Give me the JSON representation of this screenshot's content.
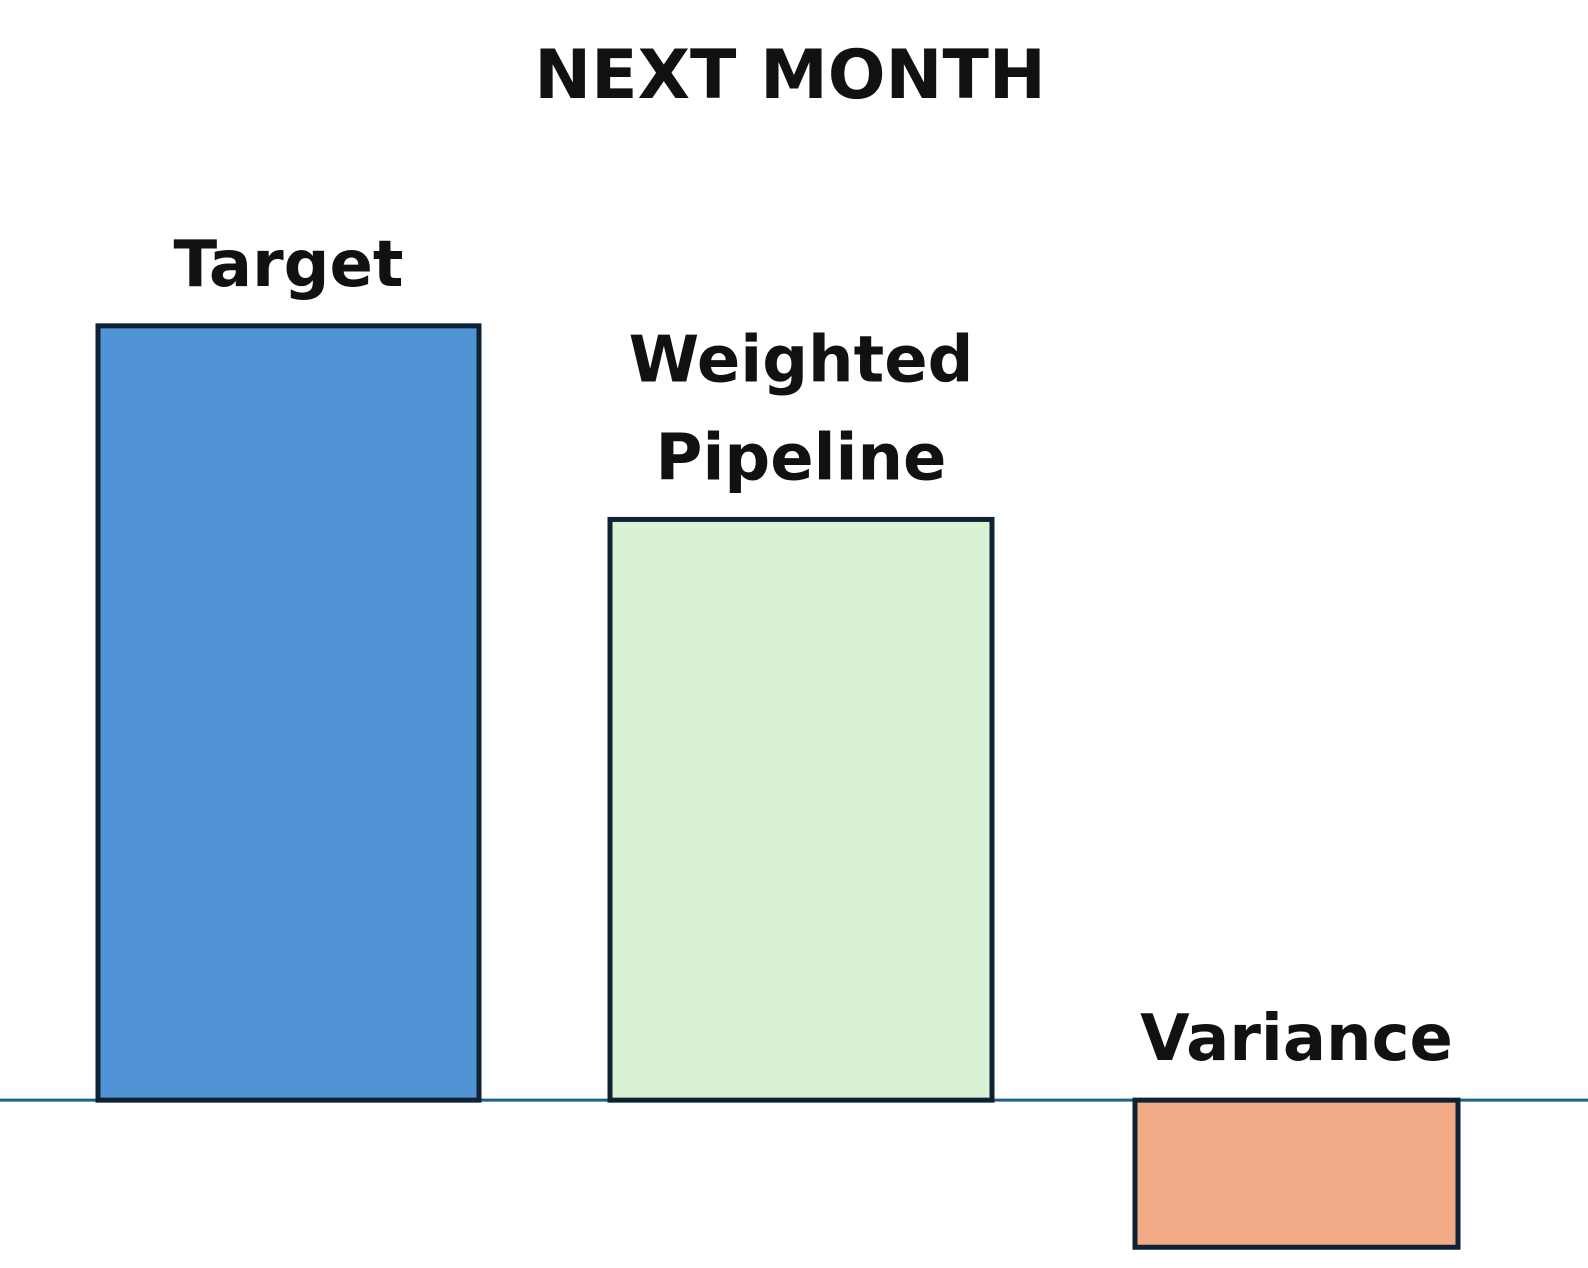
{
  "chart_data": {
    "type": "bar",
    "title": "NEXT MONTH",
    "categories": [
      "Target",
      "Weighted Pipeline",
      "Variance"
    ],
    "values": [
      100,
      75,
      -19
    ],
    "colors": [
      "#5094d6",
      "#d9f2d3",
      "#f2a985"
    ],
    "ylim": [
      -20,
      120
    ],
    "grid": false
  }
}
